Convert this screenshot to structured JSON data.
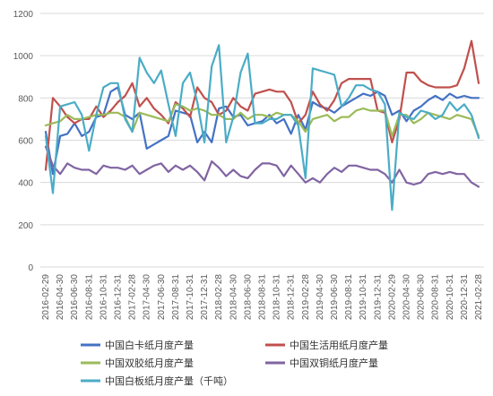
{
  "chart_data": {
    "type": "line",
    "title": "",
    "xlabel": "",
    "ylabel": "",
    "ylim": [
      0,
      1200
    ],
    "yticks": [
      0,
      200,
      400,
      600,
      800,
      1000,
      1200
    ],
    "grid": true,
    "legend_position": "bottom",
    "x": [
      "2016-02-29",
      "2016-03-31",
      "2016-04-30",
      "2016-05-31",
      "2016-06-30",
      "2016-07-31",
      "2016-08-31",
      "2016-09-30",
      "2016-10-31",
      "2016-11-30",
      "2016-12-31",
      "2017-01-31",
      "2017-02-28",
      "2017-03-31",
      "2017-04-30",
      "2017-05-31",
      "2017-06-30",
      "2017-07-31",
      "2017-08-31",
      "2017-09-30",
      "2017-10-31",
      "2017-11-30",
      "2017-12-31",
      "2018-01-31",
      "2018-02-28",
      "2018-03-31",
      "2018-04-30",
      "2018-05-31",
      "2018-06-30",
      "2018-07-31",
      "2018-08-31",
      "2018-09-30",
      "2018-10-31",
      "2018-11-30",
      "2018-12-31",
      "2019-01-31",
      "2019-02-28",
      "2019-03-31",
      "2019-04-30",
      "2019-05-31",
      "2019-06-30",
      "2019-07-31",
      "2019-08-31",
      "2019-09-30",
      "2019-10-31",
      "2019-11-30",
      "2019-12-31",
      "2020-01-31",
      "2020-02-29",
      "2020-03-31",
      "2020-04-30",
      "2020-05-31",
      "2020-06-30",
      "2020-07-31",
      "2020-08-31",
      "2020-09-30",
      "2020-10-31",
      "2020-11-30",
      "2020-12-31",
      "2021-01-31",
      "2021-02-28"
    ],
    "x_tick_labels": [
      "2016-02-29",
      "2016-04-30",
      "2016-06-30",
      "2016-08-31",
      "2016-10-31",
      "2016-12-31",
      "2017-02-28",
      "2017-04-30",
      "2017-06-30",
      "2017-08-31",
      "2017-10-31",
      "2017-12-31",
      "2018-02-28",
      "2018-04-30",
      "2018-06-30",
      "2018-08-31",
      "2018-10-31",
      "2018-12-31",
      "2019-02-28",
      "2019-04-30",
      "2019-06-30",
      "2019-08-31",
      "2019-10-31",
      "2019-12-31",
      "2020-02-29",
      "2020-04-30",
      "2020-06-30",
      "2020-08-31",
      "2020-10-31",
      "2020-12-31",
      "2021-02-28"
    ],
    "series": [
      {
        "name": "中国白卡纸月度产量",
        "color": "#4472C4",
        "values": [
          640,
          440,
          620,
          630,
          680,
          620,
          640,
          710,
          720,
          830,
          850,
          720,
          700,
          730,
          560,
          580,
          600,
          620,
          740,
          730,
          720,
          590,
          640,
          590,
          750,
          760,
          710,
          720,
          670,
          680,
          690,
          720,
          680,
          700,
          630,
          720,
          650,
          780,
          760,
          750,
          730,
          760,
          780,
          800,
          820,
          810,
          830,
          810,
          720,
          740,
          690,
          740,
          760,
          790,
          810,
          790,
          820,
          800,
          810,
          800,
          800
        ]
      },
      {
        "name": "中国生活用纸月度产量",
        "color": "#C0504D",
        "values": [
          460,
          800,
          760,
          710,
          680,
          700,
          700,
          760,
          710,
          740,
          780,
          810,
          870,
          760,
          800,
          750,
          720,
          680,
          780,
          750,
          710,
          850,
          800,
          780,
          720,
          740,
          800,
          760,
          740,
          820,
          830,
          840,
          830,
          830,
          780,
          680,
          720,
          830,
          770,
          740,
          790,
          870,
          890,
          890,
          890,
          890,
          740,
          730,
          590,
          700,
          920,
          920,
          880,
          860,
          850,
          850,
          850,
          860,
          940,
          1070,
          870
        ]
      },
      {
        "name": "中国双胶纸月度产量",
        "color": "#9BBB59",
        "values": [
          670,
          680,
          690,
          720,
          700,
          700,
          710,
          720,
          720,
          730,
          730,
          710,
          640,
          730,
          720,
          710,
          700,
          690,
          770,
          760,
          740,
          750,
          740,
          720,
          720,
          700,
          700,
          730,
          700,
          720,
          720,
          710,
          730,
          720,
          720,
          690,
          640,
          700,
          710,
          720,
          690,
          710,
          710,
          740,
          750,
          740,
          740,
          740,
          620,
          720,
          720,
          680,
          700,
          730,
          720,
          710,
          700,
          720,
          710,
          700,
          620
        ]
      },
      {
        "name": "中国双铜纸月度产量",
        "color": "#8064A2",
        "values": [
          570,
          480,
          440,
          490,
          470,
          460,
          460,
          440,
          480,
          470,
          470,
          460,
          480,
          440,
          460,
          480,
          490,
          450,
          480,
          460,
          480,
          450,
          410,
          500,
          470,
          430,
          460,
          430,
          420,
          460,
          490,
          490,
          480,
          430,
          480,
          440,
          400,
          420,
          400,
          440,
          470,
          450,
          480,
          480,
          470,
          460,
          460,
          440,
          400,
          460,
          400,
          390,
          400,
          440,
          450,
          440,
          450,
          440,
          440,
          400,
          380
        ]
      },
      {
        "name": "中国白板纸月度产量（千吨）",
        "color": "#4BACC6",
        "values": [
          620,
          350,
          760,
          770,
          780,
          720,
          550,
          720,
          850,
          870,
          870,
          700,
          640,
          990,
          920,
          870,
          930,
          770,
          620,
          870,
          920,
          780,
          590,
          950,
          1050,
          590,
          710,
          920,
          1010,
          680,
          680,
          700,
          700,
          720,
          720,
          670,
          420,
          940,
          930,
          920,
          910,
          760,
          800,
          860,
          860,
          840,
          830,
          770,
          270,
          730,
          710,
          700,
          740,
          730,
          700,
          720,
          780,
          740,
          770,
          720,
          610
        ]
      }
    ]
  }
}
